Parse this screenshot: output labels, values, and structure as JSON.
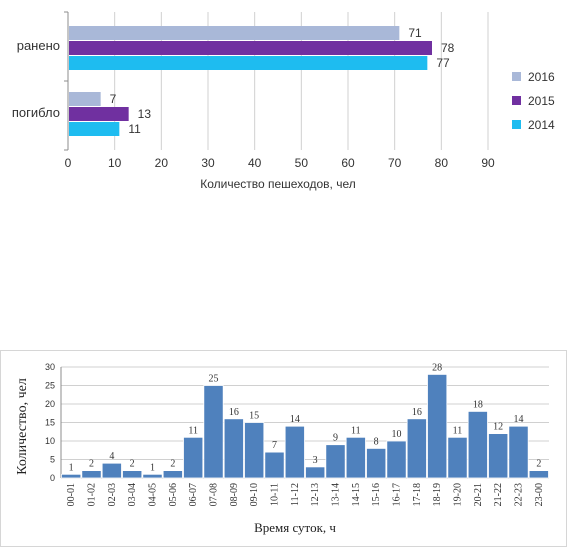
{
  "chart_data": [
    {
      "type": "bar",
      "orientation": "horizontal",
      "categories": [
        "ранено",
        "погибло"
      ],
      "series": [
        {
          "name": "2016",
          "values": [
            71,
            7
          ],
          "color": "#a9b8d8"
        },
        {
          "name": "2015",
          "values": [
            78,
            13
          ],
          "color": "#7030a0"
        },
        {
          "name": "2014",
          "values": [
            77,
            11
          ],
          "color": "#1ebcf0"
        }
      ],
      "xlabel": "Количество пешеходов, чел",
      "xlim": [
        0,
        90
      ],
      "xticks": [
        0,
        10,
        20,
        30,
        40,
        50,
        60,
        70,
        80,
        90
      ],
      "grid": true,
      "legend": "right"
    },
    {
      "type": "bar",
      "categories": [
        "00-01",
        "01-02",
        "02-03",
        "03-04",
        "04-05",
        "05-06",
        "06-07",
        "07-08",
        "08-09",
        "09-10",
        "10-11",
        "11-12",
        "12-13",
        "13-14",
        "14-15",
        "15-16",
        "16-17",
        "17-18",
        "18-19",
        "19-20",
        "20-21",
        "21-22",
        "22-23",
        "23-00"
      ],
      "values": [
        1,
        2,
        4,
        2,
        1,
        2,
        11,
        25,
        16,
        15,
        7,
        14,
        3,
        9,
        11,
        8,
        10,
        16,
        28,
        11,
        18,
        12,
        14,
        2
      ],
      "color": "#4f81bd",
      "xlabel": "Время суток, ч",
      "ylabel": "Количество, чел",
      "ylim": [
        0,
        30
      ],
      "yticks": [
        0,
        5,
        10,
        15,
        20,
        25,
        30
      ],
      "grid": true
    }
  ]
}
